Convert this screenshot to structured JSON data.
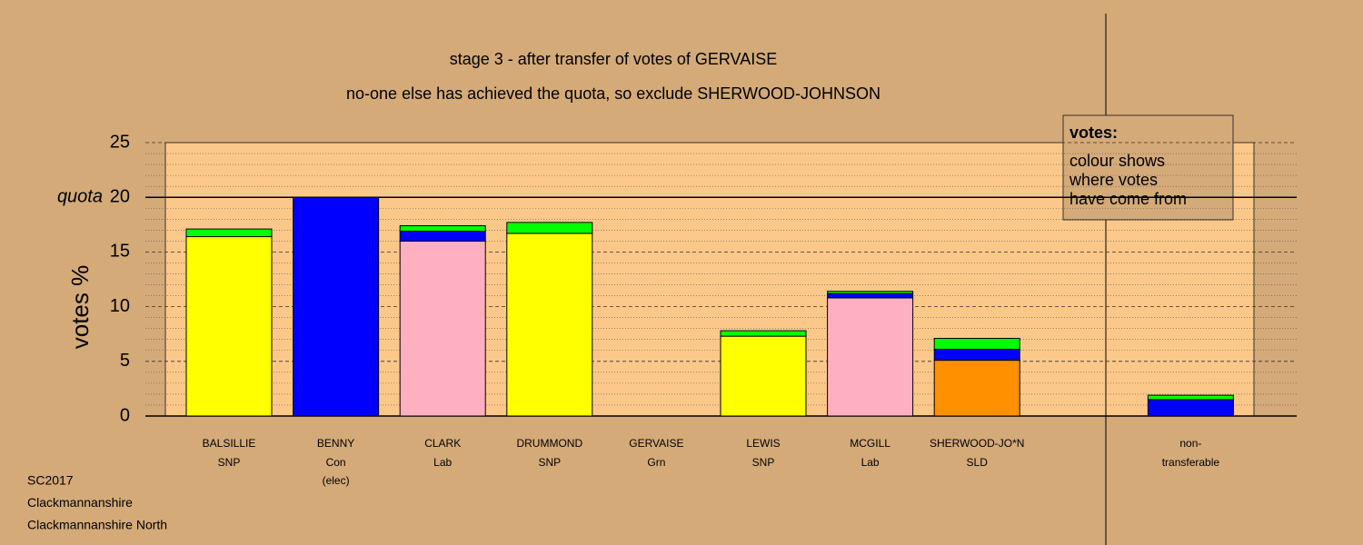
{
  "chart_data": {
    "type": "bar",
    "stacked": true,
    "title": "stage 3 - after transfer of votes of GERVAISE",
    "subtitle": "no-one else has achieved the quota, so exclude SHERWOOD-JOHNSON",
    "y_label": "votes %",
    "categories": [
      "BALSILLIE",
      "BENNY",
      "CLARK",
      "DRUMMOND",
      "GERVAISE",
      "LEWIS",
      "MCGILL",
      "SHERWOOD-JO*N",
      null,
      "non-"
    ],
    "parties": [
      "SNP",
      "Con",
      "Lab",
      "SNP",
      "Grn",
      "SNP",
      "Lab",
      "SLD",
      null,
      "transferable"
    ],
    "notes": [
      null,
      "(elec)",
      null,
      null,
      null,
      null,
      null,
      null,
      null,
      null
    ],
    "series": [
      {
        "color": "#ffff00",
        "values": [
          16.4,
          null,
          null,
          16.7,
          null,
          7.3,
          null,
          null,
          null,
          null
        ]
      },
      {
        "color": "#ffb0c0",
        "values": [
          null,
          null,
          16.0,
          null,
          null,
          null,
          10.8,
          null,
          null,
          null
        ]
      },
      {
        "color": "#ff9000",
        "values": [
          null,
          null,
          null,
          null,
          null,
          null,
          null,
          5.1,
          null,
          null
        ]
      },
      {
        "color": "#0000ff",
        "values": [
          null,
          20.0,
          0.9,
          null,
          null,
          null,
          0.4,
          1.0,
          null,
          1.5
        ]
      },
      {
        "color": "#00ff00",
        "values": [
          0.7,
          null,
          0.5,
          1.0,
          0,
          0.5,
          0.2,
          1.0,
          null,
          0.4
        ]
      }
    ],
    "ylim": [
      0,
      25
    ],
    "yticks": [
      0,
      5,
      10,
      15,
      20,
      25
    ],
    "minor_yticks": [
      1,
      2,
      3,
      4,
      6,
      7,
      8,
      9,
      11,
      12,
      13,
      14,
      16,
      17,
      18,
      19,
      21,
      22,
      23,
      24
    ],
    "quota": 20,
    "quota_label": "quota",
    "legend_title": "votes:",
    "legend_lines": [
      "colour shows",
      "where votes",
      "have come from"
    ],
    "footer": [
      "SC2017",
      "Clackmannanshire",
      "Clackmannanshire North"
    ]
  }
}
